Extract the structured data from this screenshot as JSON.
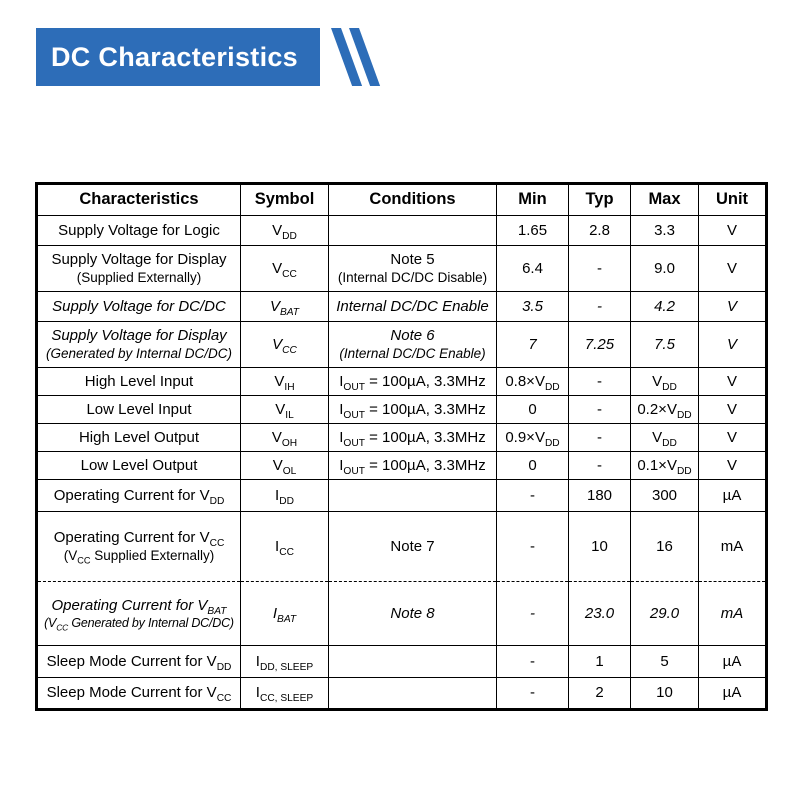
{
  "banner": {
    "title": "DC Characteristics",
    "color": "#2d6db8",
    "stripe_color": "#2d6db8"
  },
  "table": {
    "headers": {
      "characteristics": "Characteristics",
      "symbol": "Symbol",
      "conditions": "Conditions",
      "min": "Min",
      "typ": "Typ",
      "max": "Max",
      "unit": "Unit"
    },
    "rows": [
      {
        "characteristics": "Supply Voltage for Logic",
        "symbol": "V_{DD}",
        "conditions": "",
        "min": "1.65",
        "typ": "2.8",
        "max": "3.3",
        "unit": "V",
        "italic": false
      },
      {
        "characteristics": "Supply Voltage for Display",
        "characteristics_note": "(Supplied Externally)",
        "symbol": "V_{CC}",
        "conditions": "Note 5",
        "conditions_note": "(Internal DC/DC Disable)",
        "min": "6.4",
        "typ": "-",
        "max": "9.0",
        "unit": "V",
        "italic": false
      },
      {
        "characteristics": "Supply Voltage for DC/DC",
        "symbol": "V_{BAT}",
        "conditions": "Internal DC/DC Enable",
        "min": "3.5",
        "typ": "-",
        "max": "4.2",
        "unit": "V",
        "italic": true
      },
      {
        "characteristics": "Supply Voltage for Display",
        "characteristics_note": "(Generated by Internal DC/DC)",
        "symbol": "V_{CC}",
        "conditions": "Note 6",
        "conditions_note": "(Internal DC/DC Enable)",
        "min": "7",
        "typ": "7.25",
        "max": "7.5",
        "unit": "V",
        "italic": true
      },
      {
        "characteristics": "High Level Input",
        "symbol": "V_{IH}",
        "conditions": "I_{OUT} = 100µA, 3.3MHz",
        "min": "0.8×V_{DD}",
        "typ": "-",
        "max": "V_{DD}",
        "unit": "V",
        "italic": false
      },
      {
        "characteristics": "Low Level Input",
        "symbol": "V_{IL}",
        "conditions": "I_{OUT} = 100µA, 3.3MHz",
        "min": "0",
        "typ": "-",
        "max": "0.2×V_{DD}",
        "unit": "V",
        "italic": false
      },
      {
        "characteristics": "High Level Output",
        "symbol": "V_{OH}",
        "conditions": "I_{OUT} = 100µA, 3.3MHz",
        "min": "0.9×V_{DD}",
        "typ": "-",
        "max": "V_{DD}",
        "unit": "V",
        "italic": false
      },
      {
        "characteristics": "Low Level Output",
        "symbol": "V_{OL}",
        "conditions": "I_{OUT} = 100µA, 3.3MHz",
        "min": "0",
        "typ": "-",
        "max": "0.1×V_{DD}",
        "unit": "V",
        "italic": false
      },
      {
        "characteristics": "Operating Current for V_{DD}",
        "symbol": "I_{DD}",
        "conditions": "",
        "min": "-",
        "typ": "180",
        "max": "300",
        "unit": "µA",
        "italic": false
      },
      {
        "characteristics": "Operating Current for V_{CC}",
        "characteristics_note": "(V_{CC} Supplied Externally)",
        "symbol": "I_{CC}",
        "conditions": "Note 7",
        "min": "-",
        "typ": "10",
        "max": "16",
        "unit": "mA",
        "italic": false
      },
      {
        "characteristics": "Operating Current for V_{BAT}",
        "characteristics_note": "(V_{CC} Generated by Internal DC/DC)",
        "symbol": "I_{BAT}",
        "conditions": "Note 8",
        "min": "-",
        "typ": "23.0",
        "max": "29.0",
        "unit": "mA",
        "italic": true
      },
      {
        "characteristics": "Sleep Mode Current for V_{DD}",
        "symbol": "I_{DD, SLEEP}",
        "conditions": "",
        "min": "-",
        "typ": "1",
        "max": "5",
        "unit": "µA",
        "italic": false
      },
      {
        "characteristics": "Sleep Mode Current for V_{CC}",
        "symbol": "I_{CC, SLEEP}",
        "conditions": "",
        "min": "-",
        "typ": "2",
        "max": "10",
        "unit": "µA",
        "italic": false
      }
    ]
  }
}
